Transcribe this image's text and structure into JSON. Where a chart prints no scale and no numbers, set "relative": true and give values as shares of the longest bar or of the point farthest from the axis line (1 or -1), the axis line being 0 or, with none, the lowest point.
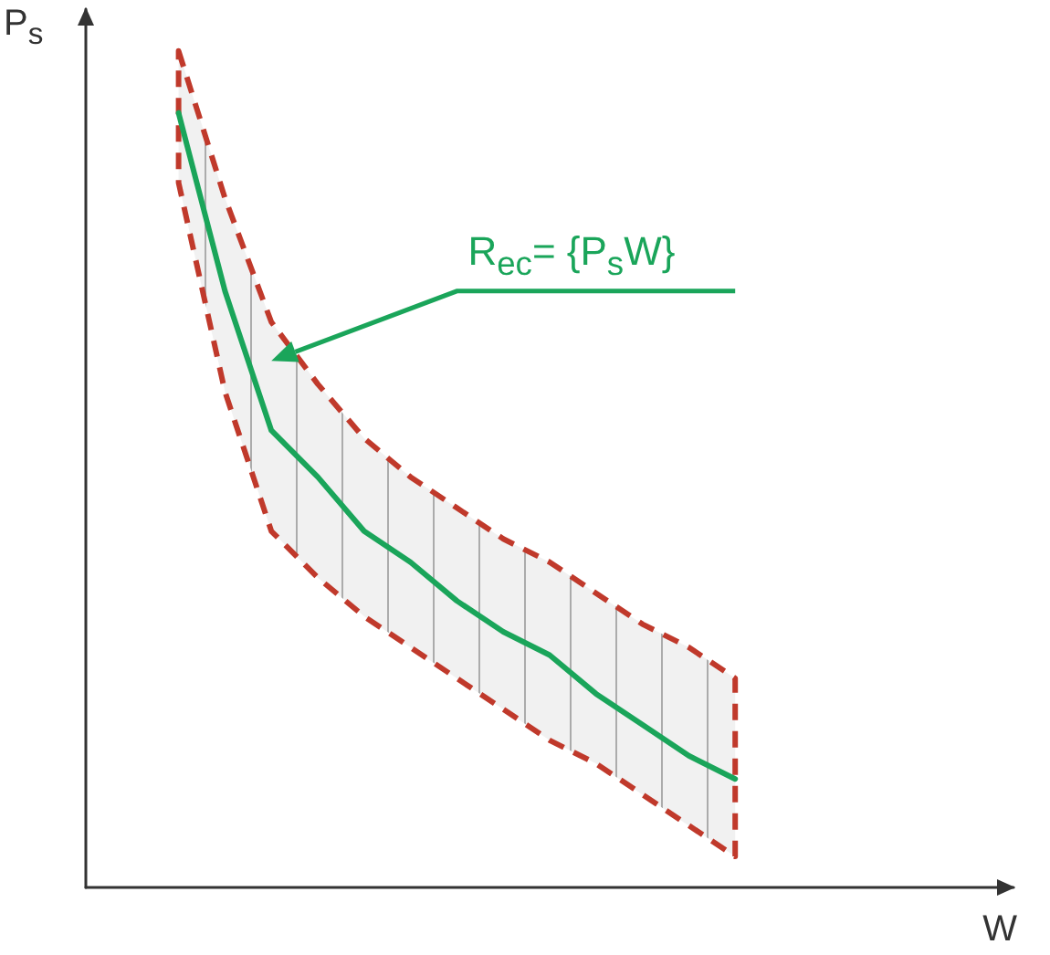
{
  "chart_data": {
    "type": "line",
    "relative": true,
    "xlabel": "W",
    "ylabel": "P$_{s}$",
    "categories": [
      null,
      null,
      null,
      null,
      null,
      null,
      null,
      null,
      null,
      null,
      null,
      null,
      null,
      null,
      null,
      null,
      null,
      null,
      null,
      null,
      null
    ],
    "series": [
      {
        "color": "#1aa55a",
        "values": [
          null,
          null,
          1,
          0.77,
          0.59,
          0.53,
          0.46,
          0.42,
          0.37,
          0.33,
          0.3,
          0.25,
          0.21,
          0.17,
          0.14,
          null,
          null,
          null,
          null,
          null,
          null
        ],
        "lower": [
          null,
          null,
          0.91,
          0.64,
          0.46,
          0.4,
          0.35,
          0.31,
          0.27,
          0.23,
          0.19,
          0.16,
          0.12,
          0.08,
          0.04,
          null,
          null,
          null,
          null,
          null,
          null
        ],
        "upper": [
          null,
          null,
          1.08,
          0.89,
          0.73,
          0.65,
          0.58,
          0.53,
          0.49,
          0.45,
          0.42,
          0.38,
          0.34,
          0.31,
          0.27,
          null,
          null,
          null,
          null,
          null,
          null
        ]
      }
    ],
    "annotations": [
      "R$_{ec}$= {P$_{s}$W}"
    ],
    "grid": false,
    "marker": "none",
    "line_style": "solid"
  }
}
